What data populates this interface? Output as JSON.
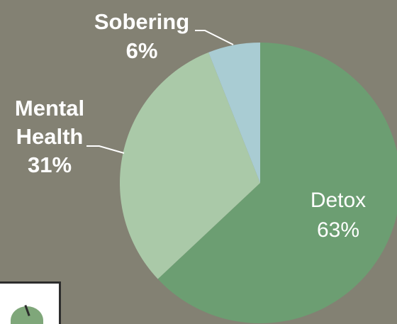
{
  "chart_data": {
    "type": "pie",
    "title": "",
    "slices": [
      {
        "label": "Detox",
        "value": 63,
        "value_label": "63%",
        "color": "#6c9e72"
      },
      {
        "label": "Mental Health",
        "label_lines": [
          "Mental",
          "Health"
        ],
        "value": 31,
        "value_label": "31%",
        "color": "#aac9a8"
      },
      {
        "label": "Sobering",
        "value": 6,
        "value_label": "6%",
        "color": "#a9ccd3"
      }
    ],
    "start_angle": "12 o'clock",
    "direction": "clockwise",
    "legend": "none",
    "label_style": "callout"
  },
  "colors": {
    "background": "#838173",
    "label_text": "#ffffff"
  },
  "corner_image": {
    "icon": "plant-logo-icon"
  }
}
